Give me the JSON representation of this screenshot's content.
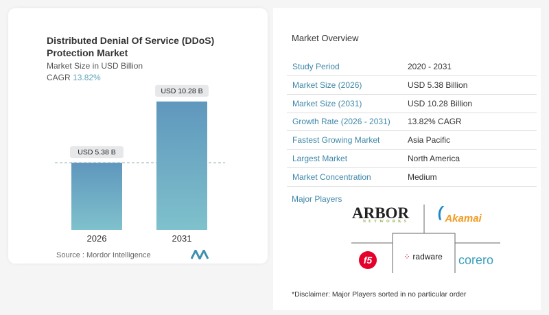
{
  "chart_data": {
    "type": "bar",
    "title": "Distributed Denial Of Service (DDoS) Protection Market",
    "subtitle": "Market Size in USD Billion",
    "cagr_label": "CAGR",
    "cagr_value": "13.82%",
    "categories": [
      "2026",
      "2031"
    ],
    "values": [
      5.38,
      10.28
    ],
    "data_labels": [
      "USD 5.38 B",
      "USD 10.28 B"
    ],
    "unit": "USD Billion",
    "bar_color": "#6aa3c0",
    "grid": false,
    "reference_line_at": 5.38
  },
  "source": "Source : Mordor Intelligence",
  "overview": {
    "title": "Market Overview",
    "rows": [
      {
        "label": "Study Period",
        "value": "2020 - 2031"
      },
      {
        "label": "Market Size (2026)",
        "value": "USD 5.38 Billion"
      },
      {
        "label": "Market Size (2031)",
        "value": "USD 10.28 Billion"
      },
      {
        "label": "Growth Rate (2026 - 2031)",
        "value": "13.82% CAGR"
      },
      {
        "label": "Fastest Growing Market",
        "value": "Asia Pacific"
      },
      {
        "label": "Largest Market",
        "value": "North America"
      },
      {
        "label": "Market Concentration",
        "value": "Medium"
      }
    ]
  },
  "players": {
    "title": "Major Players",
    "logos": [
      "ARBOR NETWORKS",
      "Akamai",
      "f5",
      "radware",
      "corero"
    ]
  },
  "disclaimer": "*Disclaimer: Major Players sorted in no particular order"
}
